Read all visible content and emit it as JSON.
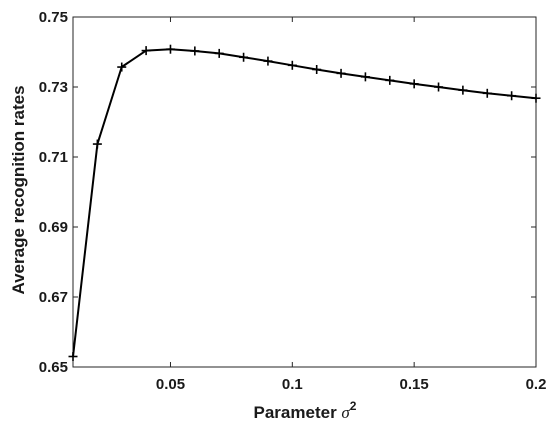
{
  "chart_data": {
    "type": "line",
    "title": "",
    "xlabel": "Parameter ",
    "xlabel_symbol": "σ",
    "xlabel_superscript": "2",
    "ylabel": "Average recognition rates",
    "xlim": [
      0.01,
      0.2
    ],
    "ylim": [
      0.65,
      0.75
    ],
    "grid": false,
    "legend": "none",
    "x_ticks": [
      0.05,
      0.1,
      0.15,
      0.2
    ],
    "x_tick_labels": [
      "0.05",
      "0.1",
      "0.15",
      "0.2"
    ],
    "y_ticks": [
      0.65,
      0.67,
      0.69,
      0.71,
      0.73,
      0.75
    ],
    "y_tick_labels": [
      "0.65",
      "0.67",
      "0.69",
      "0.71",
      "0.73",
      "0.75"
    ],
    "series": [
      {
        "marker": "plus",
        "color": "#000000",
        "x": [
          0.01,
          0.02,
          0.03,
          0.04,
          0.05,
          0.06,
          0.07,
          0.08,
          0.09,
          0.1,
          0.11,
          0.12,
          0.13,
          0.14,
          0.15,
          0.16,
          0.17,
          0.18,
          0.19,
          0.2
        ],
        "y": [
          0.653,
          0.7137,
          0.7357,
          0.7404,
          0.7408,
          0.7403,
          0.7396,
          0.7385,
          0.7374,
          0.7362,
          0.735,
          0.7339,
          0.7329,
          0.7319,
          0.7309,
          0.73,
          0.7291,
          0.7282,
          0.7275,
          0.7268
        ]
      }
    ]
  }
}
